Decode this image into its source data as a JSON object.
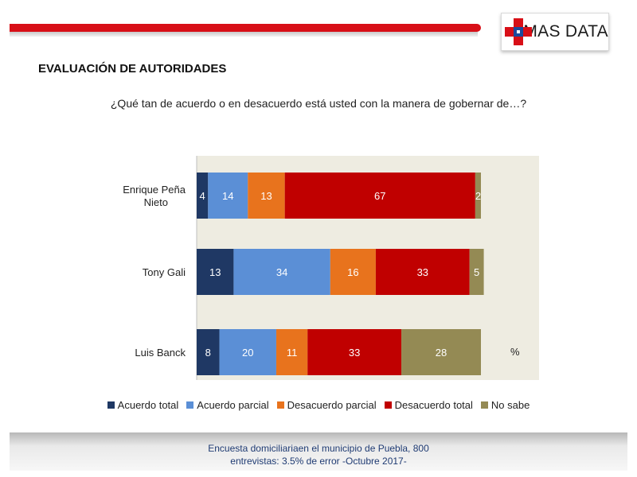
{
  "brand": {
    "name": "MAS DATA"
  },
  "section_title": "EVALUACIÓN DE AUTORIDADES",
  "question": "¿Qué tan de acuerdo o en desacuerdo está usted con la manera de gobernar de…?",
  "unit_label": "%",
  "footer": {
    "line1": "Encuesta domiciliariaen el municipio de Puebla, 800",
    "line2": "entrevistas: 3.5% de error -Octubre 2017-"
  },
  "chart_data": {
    "type": "bar",
    "orientation": "horizontal",
    "stacked": true,
    "categories": [
      [
        "Enrique Peña",
        "Nieto"
      ],
      [
        "Tony Gali"
      ],
      [
        "Luis Banck"
      ]
    ],
    "series": [
      {
        "name": "Acuerdo total",
        "color": "#1f3864",
        "values": [
          4,
          13,
          8
        ]
      },
      {
        "name": "Acuerdo parcial",
        "color": "#5b8fd6",
        "values": [
          14,
          34,
          20
        ]
      },
      {
        "name": "Desacuerdo parcial",
        "color": "#e8731d",
        "values": [
          13,
          16,
          11
        ]
      },
      {
        "name": "Desacuerdo total",
        "color": "#c00000",
        "values": [
          67,
          33,
          33
        ]
      },
      {
        "name": "No sabe",
        "color": "#948a54",
        "values": [
          2,
          5,
          28
        ]
      }
    ],
    "xlim": [
      0,
      100
    ],
    "plot_background": "#eeece1",
    "legend_position": "bottom",
    "grid": false
  }
}
